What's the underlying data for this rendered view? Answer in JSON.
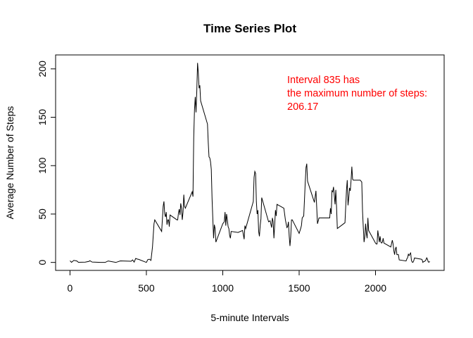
{
  "chart_data": {
    "type": "line",
    "title": "Time Series Plot",
    "x_label": "5-minute Intervals",
    "y_label": "Average Number of Steps",
    "annotation": [
      "Interval 835 has",
      "the maximum number of steps:",
      "206.17"
    ],
    "annotation_color": "#ff0000",
    "color": "#000000",
    "x": [
      0,
      10,
      25,
      45,
      55,
      100,
      125,
      130,
      145,
      200,
      230,
      250,
      300,
      330,
      400,
      410,
      420,
      430,
      440,
      450,
      500,
      510,
      520,
      530,
      540,
      550,
      555,
      600,
      610,
      615,
      620,
      625,
      630,
      635,
      640,
      645,
      650,
      655,
      700,
      705,
      710,
      715,
      720,
      725,
      730,
      735,
      740,
      745,
      750,
      755,
      800,
      805,
      810,
      815,
      820,
      825,
      830,
      835,
      840,
      845,
      850,
      855,
      900,
      905,
      910,
      915,
      920,
      925,
      930,
      935,
      940,
      945,
      950,
      955,
      1000,
      1010,
      1015,
      1020,
      1025,
      1030,
      1035,
      1040,
      1045,
      1050,
      1055,
      1100,
      1130,
      1140,
      1145,
      1150,
      1200,
      1205,
      1210,
      1215,
      1220,
      1225,
      1230,
      1235,
      1240,
      1245,
      1250,
      1255,
      1300,
      1310,
      1320,
      1325,
      1330,
      1335,
      1340,
      1345,
      1350,
      1355,
      1400,
      1410,
      1420,
      1425,
      1430,
      1435,
      1440,
      1445,
      1450,
      1455,
      1500,
      1510,
      1515,
      1520,
      1525,
      1530,
      1535,
      1540,
      1545,
      1550,
      1555,
      1600,
      1610,
      1620,
      1630,
      1700,
      1705,
      1710,
      1715,
      1720,
      1725,
      1730,
      1735,
      1740,
      1745,
      1750,
      1800,
      1810,
      1815,
      1820,
      1825,
      1830,
      1835,
      1840,
      1845,
      1850,
      1855,
      1900,
      1910,
      1915,
      1920,
      1925,
      1930,
      1935,
      1940,
      1945,
      1950,
      1955,
      2000,
      2005,
      2010,
      2015,
      2020,
      2025,
      2030,
      2035,
      2040,
      2045,
      2050,
      2055,
      2100,
      2110,
      2115,
      2120,
      2125,
      2130,
      2135,
      2140,
      2145,
      2150,
      2155,
      2200,
      2205,
      2210,
      2215,
      2220,
      2225,
      2230,
      2235,
      2240,
      2245,
      2250,
      2255,
      2300,
      2305,
      2310,
      2315,
      2320,
      2325,
      2330,
      2335,
      2340,
      2345,
      2350,
      2355
    ],
    "values": [
      1.7,
      0.1,
      2.1,
      1.5,
      0.1,
      0.3,
      1.1,
      1.8,
      0.4,
      0,
      0,
      1.5,
      0,
      1.6,
      1.2,
      2.6,
      0.3,
      4.1,
      3.5,
      3.1,
      0,
      3.0,
      3.3,
      2.1,
      16,
      40,
      44,
      32,
      58,
      63,
      50,
      47,
      52,
      39,
      44,
      44,
      37,
      49,
      44,
      44,
      51,
      55,
      49,
      61,
      56,
      44,
      52,
      70,
      58,
      56,
      73,
      68,
      129,
      158,
      171,
      155,
      177,
      206.17,
      196,
      180,
      183,
      167,
      143,
      124,
      109,
      108,
      104,
      96,
      66,
      45,
      25,
      39,
      35,
      21,
      40,
      42,
      52,
      38,
      50,
      44,
      37,
      35,
      28,
      25,
      32,
      31,
      33,
      24,
      38,
      35,
      63,
      88,
      94,
      92,
      63,
      50,
      54,
      32,
      27,
      38,
      45,
      67,
      42,
      43,
      36,
      46,
      42,
      25,
      39,
      54,
      48,
      60,
      56,
      44,
      36,
      37,
      42,
      27,
      17,
      27,
      44,
      44,
      30,
      35,
      38,
      46,
      47,
      48,
      65,
      83,
      98,
      102,
      84,
      62,
      74,
      40,
      46,
      46,
      56,
      50,
      74,
      73,
      78,
      69,
      60,
      75,
      57,
      35,
      41,
      75,
      85,
      59,
      67,
      77,
      74,
      85,
      99,
      86,
      85,
      85,
      83,
      53,
      36,
      21,
      27,
      40,
      30,
      25,
      46,
      33,
      20,
      19,
      19,
      33,
      27,
      21,
      27,
      21,
      20,
      21,
      25,
      20,
      16,
      23,
      19,
      12,
      8,
      14,
      16,
      8,
      8,
      8,
      2.6,
      1.5,
      3.7,
      4.8,
      8.5,
      7.1,
      8.7,
      9.8,
      2.2,
      0.3,
      0.1,
      1.6,
      4.6,
      3.3,
      2.8,
      0,
      0.8,
      1,
      1.6,
      2.6,
      4.7,
      3.3,
      0.6,
      0.2,
      1.1
    ],
    "xlim": [
      -94.2,
      2449.2
    ],
    "ylim": [
      -8.2468,
      214.4168
    ],
    "xticks": [
      0,
      500,
      1000,
      1500,
      2000
    ],
    "yticks": [
      0,
      50,
      100,
      150,
      200
    ]
  }
}
